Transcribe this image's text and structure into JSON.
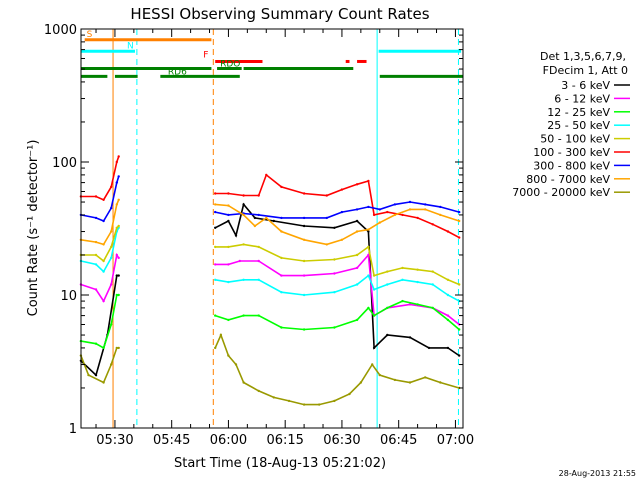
{
  "chart_data": {
    "type": "line",
    "title": "HESSI Observing Summary Count Rates",
    "xlabel": "Start Time (18-Aug-13 05:21:02)",
    "ylabel": "Count Rate (s⁻¹ detector⁻¹)",
    "yscale": "log",
    "ylim": [
      1,
      1000
    ],
    "xlim_minutes": [
      21.03,
      122
    ],
    "x_ticks": [
      {
        "label": "05:30",
        "minute": 30
      },
      {
        "label": "05:45",
        "minute": 45
      },
      {
        "label": "06:00",
        "minute": 60
      },
      {
        "label": "06:15",
        "minute": 75
      },
      {
        "label": "06:30",
        "minute": 90
      },
      {
        "label": "06:45",
        "minute": 105
      },
      {
        "label": "07:00",
        "minute": 120
      }
    ],
    "y_ticks": [
      {
        "label": "1",
        "value": 1
      },
      {
        "label": "10",
        "value": 10
      },
      {
        "label": "100",
        "value": 100
      },
      {
        "label": "1000",
        "value": 1000
      }
    ],
    "legend": {
      "header": [
        "Det 1,3,5,6,7,9,",
        "FDecim 1, Att 0"
      ],
      "placement": "right"
    },
    "series": [
      {
        "name": "3 - 6 keV",
        "color": "#000000",
        "points": [
          [
            21,
            3.2
          ],
          [
            25,
            2.5
          ],
          [
            28,
            5
          ],
          [
            30.5,
            14
          ],
          [
            31,
            14
          ],
          null,
          [
            56.5,
            32
          ],
          [
            60,
            36
          ],
          [
            62,
            28
          ],
          [
            64,
            48
          ],
          [
            67,
            38
          ],
          [
            72,
            36
          ],
          [
            80,
            33
          ],
          [
            88,
            32
          ],
          [
            94,
            36
          ],
          [
            97,
            30
          ],
          [
            98.5,
            4
          ],
          [
            102,
            5
          ],
          [
            108,
            4.8
          ],
          [
            113,
            4
          ],
          [
            118,
            4
          ],
          [
            121,
            3.5
          ]
        ]
      },
      {
        "name": "6 - 12 keV",
        "color": "#ff00ff",
        "points": [
          [
            21,
            12
          ],
          [
            25,
            11
          ],
          [
            27,
            9
          ],
          [
            29,
            12
          ],
          [
            30.5,
            20
          ],
          [
            31,
            19
          ],
          null,
          [
            56.5,
            17
          ],
          [
            60,
            17
          ],
          [
            63,
            18
          ],
          [
            68,
            18
          ],
          [
            74,
            14
          ],
          [
            80,
            14
          ],
          [
            88,
            14.5
          ],
          [
            94,
            16
          ],
          [
            97,
            20
          ],
          [
            98.5,
            7
          ],
          [
            102,
            8
          ],
          [
            108,
            8.5
          ],
          [
            114,
            8
          ],
          [
            118,
            7
          ],
          [
            121,
            6
          ]
        ]
      },
      {
        "name": "12 - 25 keV",
        "color": "#00ff00",
        "points": [
          [
            21,
            4.5
          ],
          [
            25,
            4.3
          ],
          [
            27,
            4
          ],
          [
            29,
            6
          ],
          [
            30.5,
            10
          ],
          [
            31,
            10
          ],
          null,
          [
            56.5,
            7
          ],
          [
            60,
            6.5
          ],
          [
            64,
            7
          ],
          [
            68,
            7
          ],
          [
            74,
            5.7
          ],
          [
            80,
            5.5
          ],
          [
            88,
            5.7
          ],
          [
            94,
            6.5
          ],
          [
            97,
            8
          ],
          [
            98.5,
            7
          ],
          [
            102,
            8
          ],
          [
            106,
            9
          ],
          [
            110,
            8.5
          ],
          [
            114,
            8
          ],
          [
            118,
            6.5
          ],
          [
            121,
            5.5
          ]
        ]
      },
      {
        "name": "25 - 50 keV",
        "color": "#00ffff",
        "points": [
          [
            21,
            18
          ],
          [
            25,
            17
          ],
          [
            27,
            15
          ],
          [
            29,
            19
          ],
          [
            30.5,
            30
          ],
          [
            31,
            32
          ],
          null,
          [
            56.5,
            13
          ],
          [
            60,
            12.5
          ],
          [
            64,
            13
          ],
          [
            68,
            13
          ],
          [
            74,
            10.5
          ],
          [
            80,
            10
          ],
          [
            88,
            10.5
          ],
          [
            94,
            12
          ],
          [
            97,
            14
          ],
          [
            98.5,
            11
          ],
          [
            102,
            12
          ],
          [
            106,
            13
          ],
          [
            110,
            12.5
          ],
          [
            114,
            12
          ],
          [
            118,
            10
          ],
          [
            121,
            9
          ]
        ]
      },
      {
        "name": "50 - 100 keV",
        "color": "#cccc00",
        "points": [
          [
            21,
            20
          ],
          [
            25,
            20
          ],
          [
            27,
            18
          ],
          [
            29,
            23
          ],
          [
            30.5,
            32
          ],
          [
            31,
            33
          ],
          null,
          [
            56.5,
            23
          ],
          [
            60,
            23
          ],
          [
            64,
            24
          ],
          [
            68,
            23
          ],
          [
            74,
            19
          ],
          [
            80,
            18
          ],
          [
            88,
            18.5
          ],
          [
            94,
            20
          ],
          [
            97,
            23
          ],
          [
            98.5,
            14
          ],
          [
            102,
            15
          ],
          [
            106,
            16
          ],
          [
            110,
            15.5
          ],
          [
            114,
            15
          ],
          [
            118,
            13
          ],
          [
            121,
            12
          ]
        ]
      },
      {
        "name": "100 - 300 keV",
        "color": "#ff0000",
        "points": [
          [
            21,
            55
          ],
          [
            25,
            55
          ],
          [
            27,
            52
          ],
          [
            29,
            65
          ],
          [
            30.5,
            100
          ],
          [
            31,
            110
          ],
          null,
          [
            56.5,
            58
          ],
          [
            60,
            58
          ],
          [
            64,
            56
          ],
          [
            68,
            56
          ],
          [
            70,
            80
          ],
          [
            74,
            65
          ],
          [
            80,
            58
          ],
          [
            86,
            56
          ],
          [
            90,
            62
          ],
          [
            94,
            68
          ],
          [
            97,
            72
          ],
          [
            98.5,
            40
          ],
          [
            102,
            42
          ],
          [
            106,
            40
          ],
          [
            110,
            38
          ],
          [
            114,
            34
          ],
          [
            118,
            30
          ],
          [
            121,
            27
          ]
        ]
      },
      {
        "name": "300 - 800 keV",
        "color": "#0000ff",
        "points": [
          [
            21,
            40
          ],
          [
            25,
            38
          ],
          [
            27,
            36
          ],
          [
            29,
            45
          ],
          [
            30.5,
            70
          ],
          [
            31,
            78
          ],
          null,
          [
            56.5,
            42
          ],
          [
            60,
            40
          ],
          [
            64,
            41
          ],
          [
            68,
            40
          ],
          [
            74,
            38
          ],
          [
            80,
            38
          ],
          [
            86,
            38
          ],
          [
            90,
            42
          ],
          [
            94,
            44
          ],
          [
            97,
            46
          ],
          [
            100,
            44
          ],
          [
            104,
            48
          ],
          [
            108,
            50
          ],
          [
            112,
            48
          ],
          [
            116,
            46
          ],
          [
            121,
            42
          ]
        ]
      },
      {
        "name": "800 - 7000 keV",
        "color": "#ffa500",
        "points": [
          [
            21,
            26
          ],
          [
            25,
            25
          ],
          [
            27,
            24
          ],
          [
            29,
            30
          ],
          [
            30.5,
            48
          ],
          [
            31,
            52
          ],
          null,
          [
            56.5,
            48
          ],
          [
            60,
            47
          ],
          [
            64,
            40
          ],
          [
            67,
            33
          ],
          [
            70,
            38
          ],
          [
            74,
            30
          ],
          [
            80,
            26
          ],
          [
            86,
            24
          ],
          [
            90,
            26
          ],
          [
            94,
            30
          ],
          [
            97,
            31
          ],
          [
            100,
            35
          ],
          [
            104,
            40
          ],
          [
            108,
            44
          ],
          [
            112,
            44
          ],
          [
            116,
            40
          ],
          [
            121,
            36
          ]
        ]
      },
      {
        "name": "7000 - 20000 keV",
        "color": "#999900",
        "points": [
          [
            21,
            3.5
          ],
          [
            23,
            2.5
          ],
          [
            27,
            2.2
          ],
          [
            29,
            3
          ],
          [
            30.5,
            4
          ],
          [
            31,
            4
          ],
          null,
          [
            56.5,
            4
          ],
          [
            58,
            5
          ],
          [
            60,
            3.5
          ],
          [
            62,
            3
          ],
          [
            64,
            2.2
          ],
          [
            68,
            1.9
          ],
          [
            72,
            1.7
          ],
          [
            76,
            1.6
          ],
          [
            80,
            1.5
          ],
          [
            84,
            1.5
          ],
          [
            88,
            1.6
          ],
          [
            92,
            1.8
          ],
          [
            95,
            2.2
          ],
          [
            98,
            3
          ],
          [
            100,
            2.5
          ],
          [
            104,
            2.3
          ],
          [
            108,
            2.2
          ],
          [
            112,
            2.4
          ],
          [
            116,
            2.2
          ],
          [
            121,
            2
          ]
        ]
      }
    ],
    "vertical_markers": [
      {
        "minute": 29.5,
        "color": "#ff8000",
        "style": "solid"
      },
      {
        "minute": 35.8,
        "color": "#00ffff",
        "style": "dashed"
      },
      {
        "minute": 56.0,
        "color": "#ff8000",
        "style": "dashed"
      },
      {
        "minute": 99.3,
        "color": "#00ffff",
        "style": "solid"
      },
      {
        "minute": 120.8,
        "color": "#00ffff",
        "style": "dashed"
      }
    ],
    "flag_bars": [
      {
        "label": "S",
        "color": "#ff8000",
        "y_value": 830,
        "segments": [
          [
            22,
            55.5
          ]
        ]
      },
      {
        "label": "N",
        "color": "#00ffff",
        "y_value": 680,
        "segments": [
          [
            21,
            35.3
          ]
        ]
      },
      {
        "label": "N",
        "color": "#00ffff",
        "y_value": 680,
        "segments": [
          [
            99.7,
            121.5
          ]
        ]
      },
      {
        "label": "F",
        "color": "#ff0000",
        "y_value": 570,
        "segments": [
          [
            56.5,
            69
          ],
          [
            91,
            92
          ],
          [
            94,
            96.5
          ]
        ]
      },
      {
        "label": "RDO",
        "color": "#008000",
        "y_value": 505,
        "segments": [
          [
            21,
            55.5
          ],
          [
            57,
            63.5
          ],
          [
            64,
            93
          ]
        ]
      },
      {
        "label": "RD6",
        "color": "#008000",
        "y_value": 440,
        "segments": [
          [
            21,
            28
          ],
          [
            30,
            36
          ],
          [
            42,
            63
          ],
          [
            100,
            122
          ]
        ]
      }
    ],
    "footer_date": "28-Aug-2013 21:55"
  }
}
